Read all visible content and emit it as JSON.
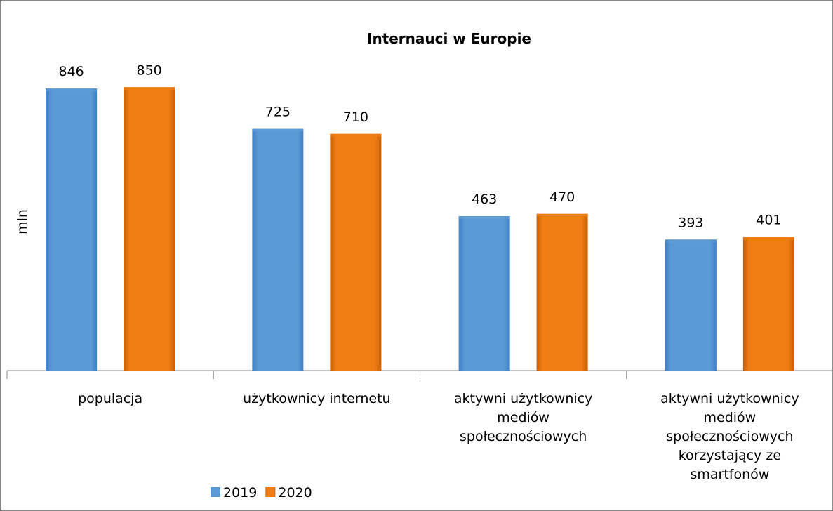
{
  "chart_data": {
    "type": "bar",
    "title": "Internauci w Europie",
    "y_label": "mln",
    "categories": [
      "populacja",
      "użytkownicy internetu",
      "aktywni użytkownicy mediów społecznościowych",
      "aktywni użytkownicy mediów społecznościowych korzystający ze smartfonów"
    ],
    "series": [
      {
        "name": "2019",
        "color": "#5b9bd5",
        "values": [
          846,
          725,
          463,
          393
        ]
      },
      {
        "name": "2020",
        "color": "#f07d14",
        "values": [
          850,
          710,
          470,
          401
        ]
      }
    ],
    "ylim": [
      0,
      1000
    ],
    "legend": "bottom",
    "data_labels": true
  }
}
